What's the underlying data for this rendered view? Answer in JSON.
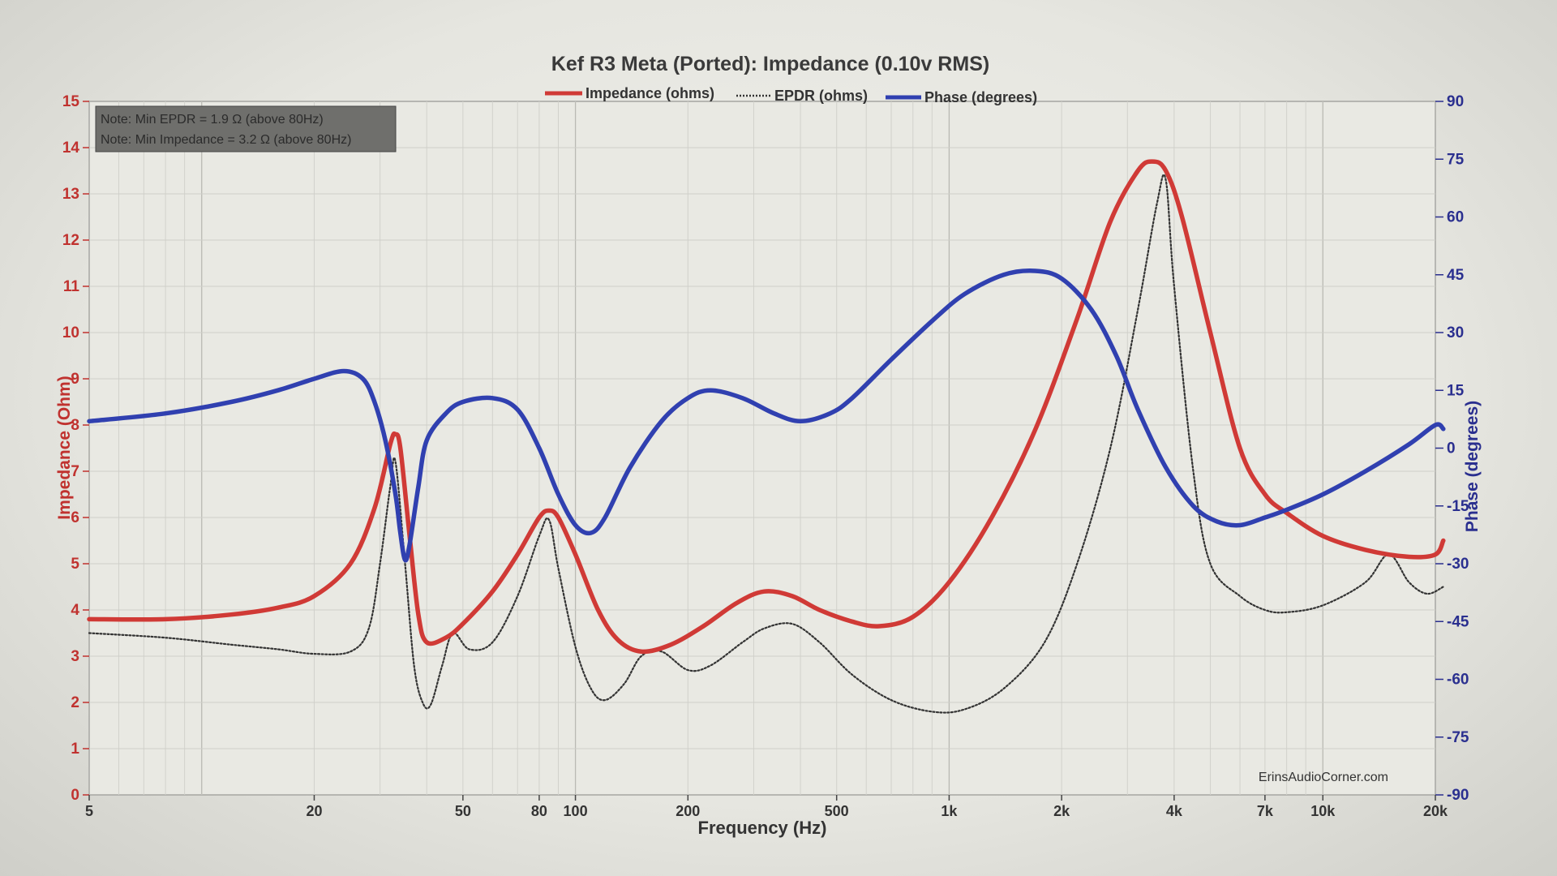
{
  "chart_data": {
    "type": "line",
    "title": "Kef R3 Meta (Ported): Impedance (0.10v RMS)",
    "xlabel": "Frequency (Hz)",
    "ylabel_left": "Impedance (Ohm)",
    "ylabel_right": "Phase (degrees)",
    "x_scale": "log",
    "xlim": [
      5,
      20000
    ],
    "ylim_left": [
      0,
      15
    ],
    "ylim_right": [
      -90,
      90
    ],
    "grid": true,
    "x_ticks": [
      {
        "value": 5,
        "label": "5"
      },
      {
        "value": 20,
        "label": "20"
      },
      {
        "value": 50,
        "label": "50"
      },
      {
        "value": 80,
        "label": "80"
      },
      {
        "value": 100,
        "label": "100"
      },
      {
        "value": 200,
        "label": "200"
      },
      {
        "value": 500,
        "label": "500"
      },
      {
        "value": 1000,
        "label": "1k"
      },
      {
        "value": 2000,
        "label": "2k"
      },
      {
        "value": 4000,
        "label": "4k"
      },
      {
        "value": 7000,
        "label": "7k"
      },
      {
        "value": 10000,
        "label": "10k"
      },
      {
        "value": 20000,
        "label": "20k"
      }
    ],
    "y_left_ticks": [
      "0",
      "1",
      "2",
      "3",
      "4",
      "5",
      "6",
      "7",
      "8",
      "9",
      "10",
      "11",
      "12",
      "13",
      "14",
      "15"
    ],
    "y_right_ticks": [
      "-90",
      "-75",
      "-60",
      "-45",
      "-30",
      "-15",
      "0",
      "15",
      "30",
      "45",
      "60",
      "75",
      "90"
    ],
    "notes": [
      "Note: Min EPDR = 1.9 Ω (above 80Hz)",
      "Note: Min Impedance = 3.2 Ω (above 80Hz)"
    ],
    "watermark": "ErinsAudioCorner.com",
    "legend_position": "top-center",
    "series": [
      {
        "name": "Impedance (ohms)",
        "axis": "left",
        "color": "#d03a36",
        "style": "solid",
        "points": [
          [
            5,
            3.8
          ],
          [
            8,
            3.8
          ],
          [
            12,
            3.9
          ],
          [
            16,
            4.05
          ],
          [
            20,
            4.3
          ],
          [
            25,
            5.0
          ],
          [
            29,
            6.2
          ],
          [
            32,
            7.6
          ],
          [
            33,
            7.8
          ],
          [
            34,
            7.5
          ],
          [
            36,
            5.6
          ],
          [
            38,
            3.9
          ],
          [
            40,
            3.3
          ],
          [
            45,
            3.4
          ],
          [
            50,
            3.7
          ],
          [
            60,
            4.4
          ],
          [
            70,
            5.2
          ],
          [
            80,
            6.0
          ],
          [
            85,
            6.15
          ],
          [
            90,
            6.0
          ],
          [
            100,
            5.2
          ],
          [
            115,
            4.0
          ],
          [
            130,
            3.35
          ],
          [
            150,
            3.1
          ],
          [
            180,
            3.25
          ],
          [
            220,
            3.65
          ],
          [
            270,
            4.15
          ],
          [
            320,
            4.4
          ],
          [
            380,
            4.3
          ],
          [
            450,
            4.0
          ],
          [
            550,
            3.75
          ],
          [
            650,
            3.65
          ],
          [
            800,
            3.85
          ],
          [
            1000,
            4.6
          ],
          [
            1300,
            6.0
          ],
          [
            1700,
            7.9
          ],
          [
            2200,
            10.3
          ],
          [
            2700,
            12.4
          ],
          [
            3200,
            13.5
          ],
          [
            3500,
            13.7
          ],
          [
            3800,
            13.5
          ],
          [
            4200,
            12.5
          ],
          [
            5000,
            10.0
          ],
          [
            6000,
            7.5
          ],
          [
            7000,
            6.5
          ],
          [
            8000,
            6.1
          ],
          [
            10000,
            5.6
          ],
          [
            13000,
            5.3
          ],
          [
            17000,
            5.15
          ],
          [
            20000,
            5.2
          ],
          [
            21000,
            5.5
          ]
        ]
      },
      {
        "name": "EPDR (ohms)",
        "axis": "left",
        "color": "#333333",
        "style": "dotted",
        "points": [
          [
            5,
            3.5
          ],
          [
            8,
            3.4
          ],
          [
            12,
            3.25
          ],
          [
            16,
            3.15
          ],
          [
            20,
            3.05
          ],
          [
            25,
            3.1
          ],
          [
            28,
            3.6
          ],
          [
            30,
            5.0
          ],
          [
            32,
            6.7
          ],
          [
            33,
            7.2
          ],
          [
            35,
            5.0
          ],
          [
            37,
            2.8
          ],
          [
            39,
            2.0
          ],
          [
            41,
            1.95
          ],
          [
            44,
            2.8
          ],
          [
            47,
            3.5
          ],
          [
            52,
            3.15
          ],
          [
            60,
            3.3
          ],
          [
            70,
            4.3
          ],
          [
            80,
            5.6
          ],
          [
            85,
            5.95
          ],
          [
            90,
            4.9
          ],
          [
            100,
            3.2
          ],
          [
            110,
            2.3
          ],
          [
            120,
            2.05
          ],
          [
            135,
            2.4
          ],
          [
            150,
            3.0
          ],
          [
            170,
            3.1
          ],
          [
            200,
            2.7
          ],
          [
            230,
            2.8
          ],
          [
            280,
            3.3
          ],
          [
            320,
            3.6
          ],
          [
            380,
            3.7
          ],
          [
            450,
            3.3
          ],
          [
            550,
            2.6
          ],
          [
            700,
            2.05
          ],
          [
            900,
            1.8
          ],
          [
            1100,
            1.85
          ],
          [
            1400,
            2.3
          ],
          [
            1800,
            3.3
          ],
          [
            2200,
            5.0
          ],
          [
            2700,
            7.5
          ],
          [
            3200,
            10.5
          ],
          [
            3600,
            12.8
          ],
          [
            3800,
            13.3
          ],
          [
            4000,
            11.0
          ],
          [
            4500,
            7.0
          ],
          [
            5000,
            5.0
          ],
          [
            6000,
            4.3
          ],
          [
            7000,
            4.0
          ],
          [
            8000,
            3.95
          ],
          [
            10000,
            4.1
          ],
          [
            13000,
            4.6
          ],
          [
            15000,
            5.2
          ],
          [
            17000,
            4.6
          ],
          [
            19000,
            4.35
          ],
          [
            21000,
            4.5
          ]
        ]
      },
      {
        "name": "Phase (degrees)",
        "axis": "right",
        "color": "#3040b0",
        "style": "solid",
        "points": [
          [
            5,
            7
          ],
          [
            8,
            9
          ],
          [
            12,
            12
          ],
          [
            16,
            15
          ],
          [
            20,
            18
          ],
          [
            24,
            20
          ],
          [
            27,
            18
          ],
          [
            29,
            12
          ],
          [
            31,
            2
          ],
          [
            33,
            -12
          ],
          [
            34,
            -22
          ],
          [
            35,
            -29
          ],
          [
            36,
            -25
          ],
          [
            38,
            -10
          ],
          [
            40,
            2
          ],
          [
            45,
            9
          ],
          [
            50,
            12
          ],
          [
            60,
            13
          ],
          [
            70,
            10
          ],
          [
            80,
            0
          ],
          [
            90,
            -12
          ],
          [
            100,
            -20
          ],
          [
            110,
            -22
          ],
          [
            120,
            -18
          ],
          [
            140,
            -5
          ],
          [
            170,
            7
          ],
          [
            200,
            13
          ],
          [
            230,
            15
          ],
          [
            280,
            13
          ],
          [
            340,
            9
          ],
          [
            400,
            7
          ],
          [
            480,
            9
          ],
          [
            550,
            13
          ],
          [
            700,
            23
          ],
          [
            900,
            33
          ],
          [
            1100,
            40
          ],
          [
            1400,
            45
          ],
          [
            1700,
            46
          ],
          [
            2000,
            44
          ],
          [
            2400,
            36
          ],
          [
            2800,
            24
          ],
          [
            3200,
            10
          ],
          [
            3800,
            -5
          ],
          [
            4500,
            -15
          ],
          [
            5200,
            -19
          ],
          [
            6000,
            -20
          ],
          [
            7000,
            -18
          ],
          [
            8000,
            -16
          ],
          [
            10000,
            -12
          ],
          [
            13000,
            -6
          ],
          [
            17000,
            1
          ],
          [
            20000,
            6
          ],
          [
            21000,
            5
          ]
        ]
      }
    ]
  }
}
